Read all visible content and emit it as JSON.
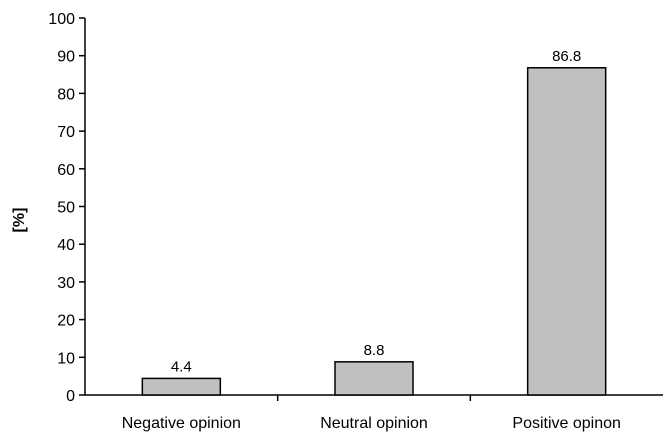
{
  "chart_data": {
    "type": "bar",
    "title": "",
    "xlabel": "",
    "ylabel": "[%]",
    "categories": [
      "Negative opinion",
      "Neutral opinion",
      "Positive opinon"
    ],
    "values": [
      4.4,
      8.8,
      86.8
    ],
    "data_labels": [
      "4.4",
      "8.8",
      "86.8"
    ],
    "ylim": [
      0,
      100
    ],
    "yticks": [
      0,
      10,
      20,
      30,
      40,
      50,
      60,
      70,
      80,
      90,
      100
    ],
    "ytick_labels": [
      "0",
      "10",
      "20",
      "30",
      "40",
      "50",
      "60",
      "70",
      "80",
      "90",
      "100"
    ],
    "grid": false,
    "legend": "none",
    "colors": {
      "bar_fill": "#c0c0c0",
      "bar_stroke": "#000000",
      "axis": "#000000"
    }
  }
}
